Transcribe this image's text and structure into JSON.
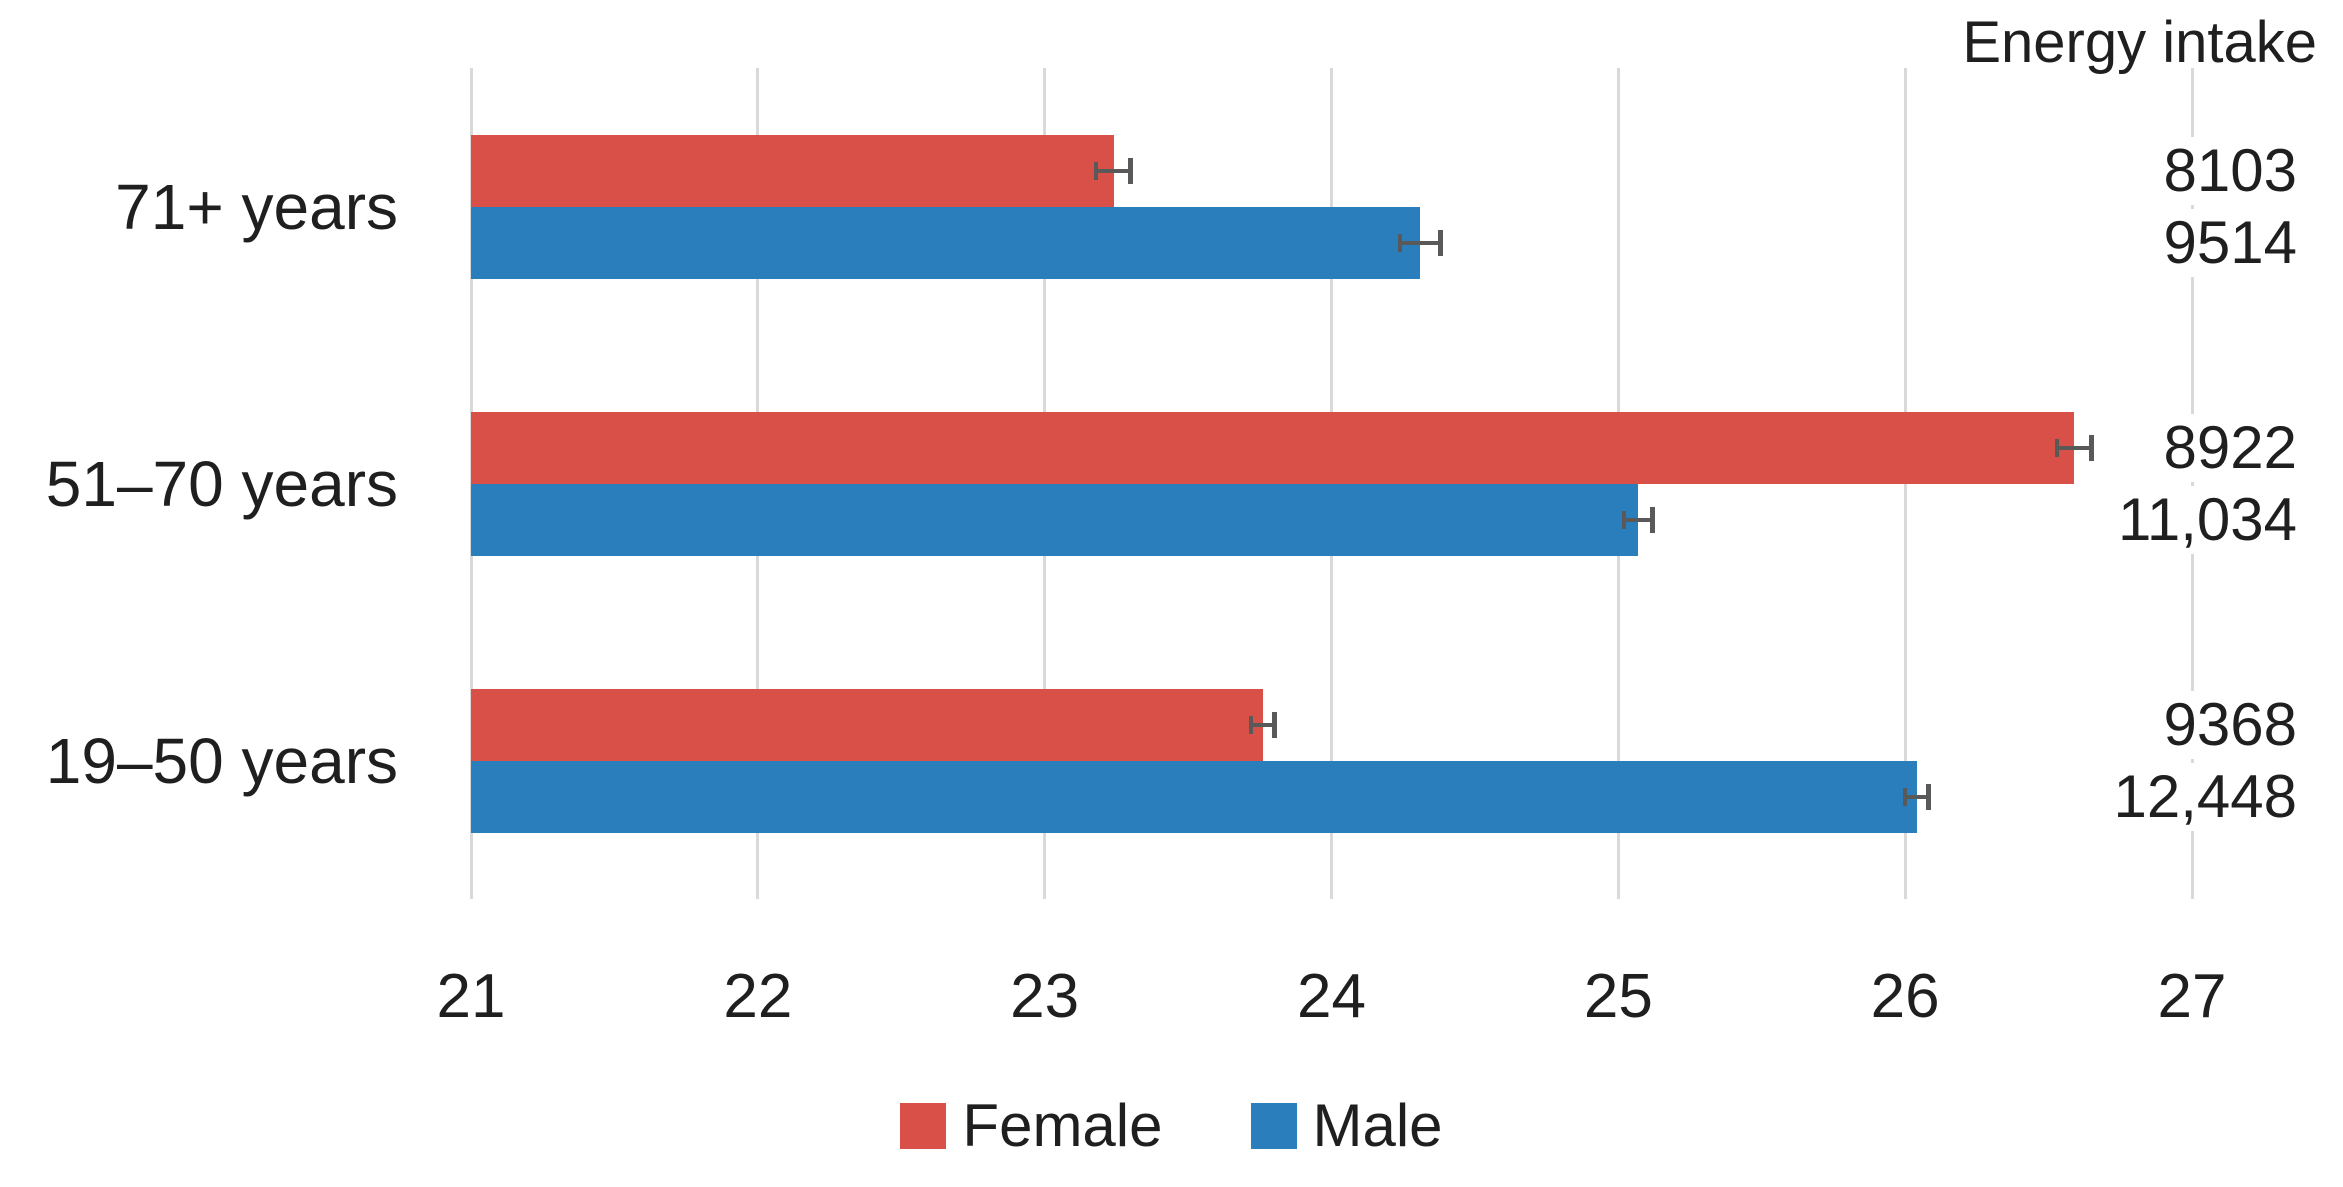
{
  "chart_data": {
    "type": "bar",
    "orientation": "horizontal",
    "title": "",
    "xlabel": "",
    "ylabel": "",
    "xlim": [
      21,
      27
    ],
    "x_ticks": [
      21,
      22,
      23,
      24,
      25,
      26,
      27
    ],
    "grid": true,
    "legend_position": "bottom",
    "categories": [
      "71+ years",
      "51–70 years",
      "19–50 years"
    ],
    "series": [
      {
        "name": "Female",
        "color": "#d95049",
        "values": [
          23.24,
          26.59,
          23.76
        ],
        "errors": [
          0.06,
          0.06,
          0.04
        ]
      },
      {
        "name": "Male",
        "color": "#2a7ebb",
        "values": [
          24.31,
          25.07,
          26.04
        ],
        "errors": [
          0.07,
          0.05,
          0.04
        ]
      }
    ],
    "right_column": {
      "title": "Energy intake",
      "values_by_row": [
        [
          "8103",
          "9514"
        ],
        [
          "8922",
          "11,034"
        ],
        [
          "9368",
          "12,448"
        ]
      ]
    }
  },
  "colors": {
    "female": "#d95049",
    "male": "#2a7ebb",
    "gridline": "#d9d9d9",
    "error_bar": "#595959",
    "text": "#1f1f1f",
    "background": "#ffffff"
  }
}
